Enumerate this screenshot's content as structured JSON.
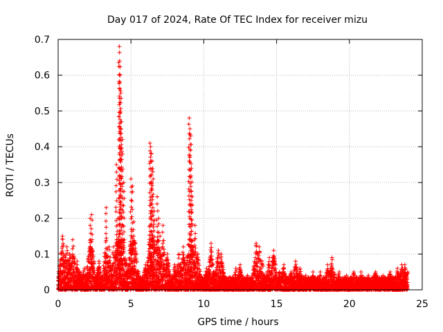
{
  "chart_data": {
    "type": "scatter",
    "title": "Day 017 of 2024, Rate Of TEC Index for receiver mizu",
    "xlabel": "GPS time / hours",
    "ylabel": "ROTI / TECUs",
    "xlim": [
      0,
      25
    ],
    "ylim": [
      0,
      0.7
    ],
    "xticks": [
      0,
      5,
      10,
      15,
      20,
      25
    ],
    "yticks": [
      0,
      0.1,
      0.2,
      0.3,
      0.4,
      0.5,
      0.6,
      0.7
    ],
    "xtick_labels": [
      "0",
      "5",
      "10",
      "15",
      "20",
      "25"
    ],
    "ytick_labels": [
      "0",
      "0.1",
      "0.2",
      "0.3",
      "0.4",
      "0.5",
      "0.6",
      "0.7"
    ],
    "grid": true,
    "marker": "+",
    "marker_color": "#ff0000",
    "data_extent_hours": [
      0,
      24
    ],
    "series": [
      {
        "name": "ROTI",
        "sample_points": {
          "x": [
            0.1,
            0.2,
            0.3,
            0.5,
            0.6,
            0.8,
            1.0,
            1.3,
            1.5,
            1.8,
            2.2,
            2.3,
            2.8,
            3.3,
            3.5,
            3.8,
            4.0,
            4.1,
            4.2,
            4.22,
            4.25,
            4.3,
            4.35,
            4.4,
            4.5,
            5.0,
            5.1,
            5.2,
            5.3,
            6.0,
            6.3,
            6.35,
            6.4,
            6.45,
            6.5,
            6.6,
            6.8,
            6.9,
            7.0,
            7.2,
            7.5,
            8.0,
            8.3,
            8.6,
            9.0,
            9.05,
            9.1,
            9.15,
            9.2,
            9.4,
            9.6,
            10.2,
            10.5,
            11.0,
            11.2,
            12.2,
            12.5,
            13.0,
            13.6,
            13.8,
            14.0,
            14.5,
            14.8,
            15.2,
            15.5,
            16.0,
            16.3,
            16.6,
            17.0,
            17.5,
            18.0,
            18.5,
            18.8,
            19.3,
            19.8,
            20.3,
            20.8,
            21.3,
            21.8,
            22.3,
            22.8,
            23.3,
            23.6,
            23.8,
            24.0
          ],
          "y": [
            0.06,
            0.1,
            0.15,
            0.09,
            0.12,
            0.1,
            0.14,
            0.08,
            0.05,
            0.06,
            0.2,
            0.21,
            0.08,
            0.23,
            0.12,
            0.12,
            0.35,
            0.2,
            0.68,
            0.64,
            0.6,
            0.55,
            0.47,
            0.42,
            0.3,
            0.31,
            0.29,
            0.19,
            0.13,
            0.07,
            0.41,
            0.4,
            0.38,
            0.36,
            0.33,
            0.22,
            0.26,
            0.2,
            0.15,
            0.18,
            0.1,
            0.07,
            0.1,
            0.12,
            0.48,
            0.45,
            0.43,
            0.34,
            0.26,
            0.18,
            0.1,
            0.06,
            0.13,
            0.11,
            0.1,
            0.06,
            0.07,
            0.04,
            0.13,
            0.12,
            0.08,
            0.09,
            0.11,
            0.05,
            0.07,
            0.05,
            0.08,
            0.06,
            0.04,
            0.05,
            0.05,
            0.07,
            0.09,
            0.05,
            0.04,
            0.05,
            0.05,
            0.04,
            0.05,
            0.04,
            0.05,
            0.06,
            0.07,
            0.07,
            0.05
          ]
        }
      }
    ]
  }
}
